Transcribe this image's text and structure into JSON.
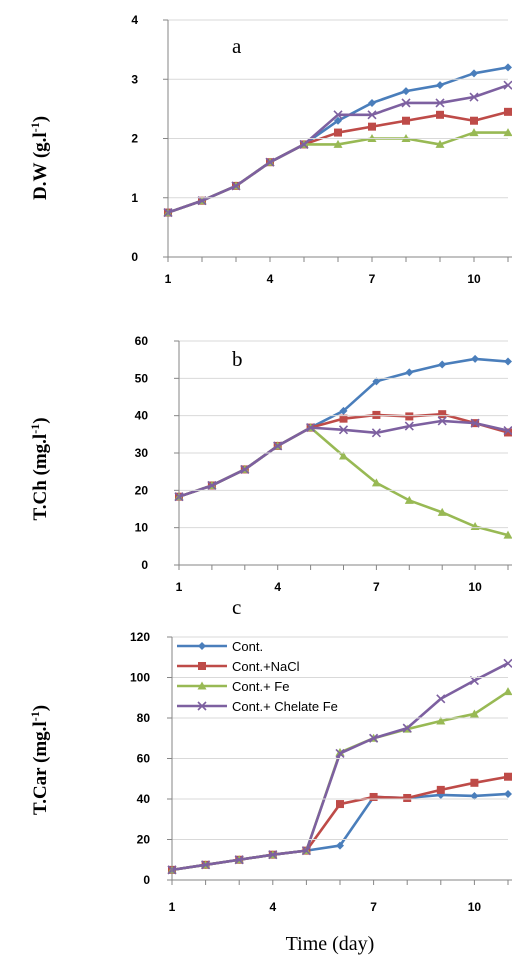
{
  "colors": {
    "Cont.": "#4a7ebb",
    "Cont.+NaCl": "#be4b48",
    "Cont.+ Fe": "#98b954",
    "Cont.+ Chelate Fe": "#7d60a0"
  },
  "x_axis_label": "Time (day)",
  "legend": [
    "Cont.",
    "Cont.+NaCl",
    "Cont.+ Fe",
    "Cont.+ Chelate Fe"
  ],
  "chart_data": [
    {
      "type": "line",
      "panel_label": "a",
      "ylabel_main": "D.W (g.l",
      "ylabel_sup": "-1",
      "ylabel_end": ")",
      "x": [
        1,
        2,
        3,
        4,
        5,
        6,
        7,
        8,
        9,
        10,
        11
      ],
      "xticks": [
        1,
        4,
        7,
        10
      ],
      "xlim": [
        1,
        11
      ],
      "ylim": [
        0,
        4
      ],
      "yticks": [
        0,
        1,
        2,
        3,
        4
      ],
      "series": [
        {
          "name": "Cont.",
          "values": [
            0.75,
            0.95,
            1.2,
            1.6,
            1.9,
            2.3,
            2.6,
            2.8,
            2.9,
            3.1,
            3.2
          ]
        },
        {
          "name": "Cont.+NaCl",
          "values": [
            0.75,
            0.95,
            1.2,
            1.6,
            1.9,
            2.1,
            2.2,
            2.3,
            2.4,
            2.3,
            2.45
          ]
        },
        {
          "name": "Cont.+ Fe",
          "values": [
            0.75,
            0.95,
            1.2,
            1.6,
            1.9,
            1.9,
            2.0,
            2.0,
            1.9,
            2.1,
            2.1
          ]
        },
        {
          "name": "Cont.+ Chelate Fe",
          "values": [
            0.75,
            0.95,
            1.2,
            1.6,
            1.9,
            2.4,
            2.4,
            2.6,
            2.6,
            2.7,
            2.9
          ]
        }
      ]
    },
    {
      "type": "line",
      "panel_label": "b",
      "ylabel_main": "T.Ch (mg.l",
      "ylabel_sup": "-1",
      "ylabel_end": ")",
      "x": [
        1,
        2,
        3,
        4,
        5,
        6,
        7,
        8,
        9,
        10,
        11
      ],
      "xticks": [
        1,
        4,
        7,
        10
      ],
      "xlim": [
        1,
        11
      ],
      "ylim": [
        0,
        60
      ],
      "yticks": [
        0,
        10,
        20,
        30,
        40,
        50,
        60
      ],
      "series": [
        {
          "name": "Cont.",
          "values": [
            18.3,
            21.3,
            25.6,
            31.9,
            36.8,
            41.3,
            49.2,
            51.6,
            53.7,
            55.2,
            54.5
          ]
        },
        {
          "name": "Cont.+NaCl",
          "values": [
            18.3,
            21.3,
            25.6,
            31.9,
            36.8,
            39.2,
            40.2,
            39.8,
            40.4,
            38.0,
            35.5
          ]
        },
        {
          "name": "Cont.+ Fe",
          "values": [
            18.3,
            21.3,
            25.6,
            31.9,
            36.8,
            29.2,
            22.0,
            17.3,
            14.1,
            10.3,
            8.0
          ]
        },
        {
          "name": "Cont.+ Chelate Fe",
          "values": [
            18.3,
            21.3,
            25.6,
            31.9,
            36.8,
            36.2,
            35.4,
            37.2,
            38.6,
            38.0,
            36.0
          ]
        }
      ]
    },
    {
      "type": "line",
      "panel_label": "c",
      "ylabel_main": "T.Car (mg.l",
      "ylabel_sup": "-1",
      "ylabel_end": ")",
      "x": [
        1,
        2,
        3,
        4,
        5,
        6,
        7,
        8,
        9,
        10,
        11
      ],
      "xticks": [
        1,
        4,
        7,
        10
      ],
      "xlim": [
        1,
        11
      ],
      "ylim": [
        0,
        120
      ],
      "yticks": [
        0,
        20,
        40,
        60,
        80,
        100,
        120
      ],
      "legend_position": "top-left",
      "series": [
        {
          "name": "Cont.",
          "values": [
            5,
            7.5,
            10,
            12.5,
            14.5,
            17,
            41,
            40.5,
            42,
            41.5,
            42.5
          ]
        },
        {
          "name": "Cont.+NaCl",
          "values": [
            5,
            7.5,
            10,
            12.5,
            14.5,
            37.5,
            41,
            40.5,
            44.5,
            48,
            51
          ]
        },
        {
          "name": "Cont.+ Fe",
          "values": [
            5,
            7.5,
            10,
            12.5,
            14.5,
            63,
            70,
            74.5,
            78.5,
            82,
            93
          ]
        },
        {
          "name": "Cont.+ Chelate Fe",
          "values": [
            5,
            7.5,
            10,
            12.5,
            14.5,
            62.5,
            70,
            75,
            89.5,
            98.5,
            107
          ]
        }
      ]
    }
  ]
}
